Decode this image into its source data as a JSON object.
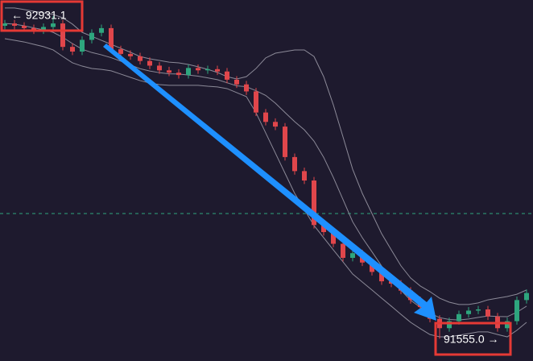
{
  "chart_data": {
    "type": "candlestick",
    "ylim": [
      91460,
      93000
    ],
    "up_color": "#2ea67e",
    "down_color": "#e0464b",
    "band_color": "#8c8a98",
    "price_line_color": "#2ea67e",
    "price_line": 92089,
    "open": [
      92890,
      92900,
      92890,
      92880,
      92870,
      92885,
      92900,
      92800,
      92780,
      92830,
      92860,
      92880,
      92790,
      92770,
      92760,
      92740,
      92720,
      92700,
      92690,
      92680,
      92710,
      92700,
      92705,
      92695,
      92660,
      92640,
      92610,
      92520,
      92480,
      92460,
      92330,
      92270,
      92230,
      92040,
      92010,
      91960,
      91900,
      91920,
      91880,
      91840,
      91800,
      91790,
      91760,
      91720,
      91690,
      91640,
      91600,
      91630,
      91660,
      91675,
      91680,
      91650,
      91600,
      91630,
      91720
    ],
    "high": [
      92915,
      92915,
      92905,
      92895,
      92900,
      92931.1,
      92915,
      92815,
      92845,
      92875,
      92895,
      92895,
      92805,
      92785,
      92775,
      92755,
      92735,
      92715,
      92705,
      92725,
      92725,
      92720,
      92720,
      92710,
      92675,
      92655,
      92625,
      92535,
      92495,
      92475,
      92345,
      92285,
      92245,
      92055,
      92025,
      91975,
      91935,
      91935,
      91895,
      91855,
      91815,
      91805,
      91775,
      91735,
      91705,
      91655,
      91645,
      91675,
      91690,
      91695,
      91695,
      91665,
      91645,
      91735,
      91765
    ],
    "low": [
      92875,
      92875,
      92865,
      92855,
      92855,
      92870,
      92785,
      92765,
      92765,
      92815,
      92845,
      92775,
      92755,
      92745,
      92725,
      92705,
      92685,
      92675,
      92665,
      92665,
      92685,
      92685,
      92680,
      92645,
      92625,
      92595,
      92505,
      92465,
      92445,
      92315,
      92255,
      92215,
      92025,
      91995,
      91945,
      91885,
      91885,
      91865,
      91825,
      91785,
      91775,
      91745,
      91705,
      91675,
      91625,
      91555,
      91585,
      91615,
      91645,
      91660,
      91635,
      91585,
      91585,
      91615,
      91705
    ],
    "close": [
      92900,
      92890,
      92880,
      92870,
      92885,
      92900,
      92800,
      92780,
      92830,
      92860,
      92880,
      92790,
      92770,
      92760,
      92740,
      92720,
      92700,
      92690,
      92680,
      92710,
      92700,
      92705,
      92695,
      92660,
      92640,
      92610,
      92520,
      92480,
      92460,
      92330,
      92270,
      92230,
      92040,
      92010,
      91960,
      91900,
      91920,
      91880,
      91840,
      91800,
      91790,
      91760,
      91720,
      91690,
      91640,
      91600,
      91630,
      91660,
      91675,
      91680,
      91650,
      91600,
      91630,
      91720,
      91750
    ],
    "bands": {
      "upper": [
        92966,
        92966,
        92959,
        92952,
        92945,
        92938,
        92924,
        92897,
        92862,
        92845,
        92828,
        92811,
        92794,
        92777,
        92759,
        92749,
        92742,
        92735,
        92732,
        92725,
        92715,
        92704,
        92691,
        92673,
        92663,
        92673,
        92708,
        92753,
        92773,
        92780,
        92787,
        92787,
        92759,
        92673,
        92553,
        92416,
        92278,
        92175,
        92089,
        92003,
        91934,
        91866,
        91814,
        91780,
        91756,
        91728,
        91711,
        91701,
        91701,
        91708,
        91721,
        91728,
        91735,
        91745,
        91763
      ],
      "middle": [
        92900,
        92897,
        92890,
        92881,
        92873,
        92862,
        92841,
        92814,
        92790,
        92776,
        92766,
        92754,
        92739,
        92723,
        92707,
        92697,
        92690,
        92685,
        92684,
        92680,
        92675,
        92668,
        92660,
        92647,
        92634,
        92630,
        92613,
        92593,
        92560,
        92520,
        92481,
        92446,
        92398,
        92329,
        92243,
        92149,
        92054,
        91986,
        91926,
        91865,
        91814,
        91762,
        91719,
        91689,
        91664,
        91645,
        91637,
        91635,
        91639,
        91646,
        91652,
        91650,
        91649,
        91668,
        91694
      ],
      "lower": [
        92835,
        92828,
        92821,
        92811,
        92801,
        92787,
        92759,
        92732,
        92718,
        92708,
        92704,
        92698,
        92684,
        92670,
        92656,
        92646,
        92639,
        92636,
        92636,
        92636,
        92636,
        92632,
        92629,
        92622,
        92605,
        92588,
        92519,
        92433,
        92347,
        92261,
        92175,
        92106,
        92038,
        91986,
        91934,
        91883,
        91831,
        91797,
        91763,
        91728,
        91694,
        91659,
        91625,
        91598,
        91573,
        91563,
        91563,
        91570,
        91577,
        91584,
        91584,
        91573,
        91563,
        91591,
        91625
      ]
    },
    "annotations": [
      {
        "text": "← 92931.1"
      },
      {
        "text": "91555.0 →"
      }
    ]
  }
}
